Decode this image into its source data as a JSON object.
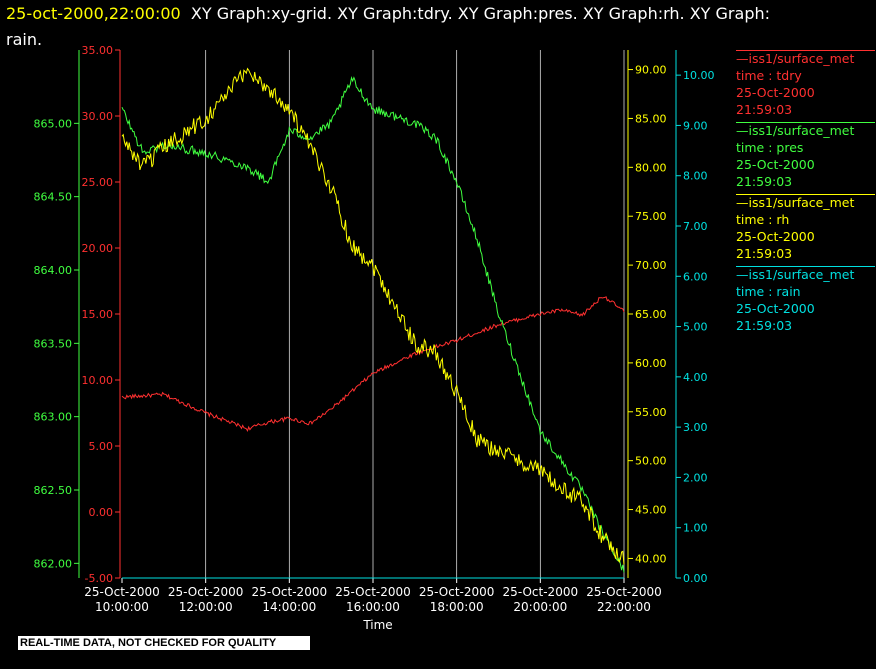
{
  "title": {
    "timestamp": "25-oct-2000,22:00:00",
    "text1": "XY Graph:xy-grid.  XY Graph:tdry.  XY Graph:pres.  XY Graph:rh.  XY Graph:",
    "text2": "rain."
  },
  "quality_note": "REAL-TIME DATA, NOT CHECKED FOR QUALITY",
  "colors": {
    "tdry": "#ff3030",
    "pres": "#40ff40",
    "rh": "#ffff00",
    "rain": "#00e0e0",
    "grid": "#ffffff",
    "text": "#ffffff"
  },
  "legend": [
    {
      "key": "tdry",
      "source": "iss1/surface_met",
      "field": "time : tdry",
      "date": "25-Oct-2000",
      "time": "21:59:03"
    },
    {
      "key": "pres",
      "source": "iss1/surface_met",
      "field": "time : pres",
      "date": "25-Oct-2000",
      "time": "21:59:03"
    },
    {
      "key": "rh",
      "source": "iss1/surface_met",
      "field": "time : rh",
      "date": "25-Oct-2000",
      "time": "21:59:03"
    },
    {
      "key": "rain",
      "source": "iss1/surface_met",
      "field": "time : rain",
      "date": "25-Oct-2000",
      "time": "21:59:03"
    }
  ],
  "chart_data": {
    "type": "line",
    "xlabel": "Time",
    "x_range": [
      "2000-10-25 10:00",
      "2000-10-25 22:00"
    ],
    "x_ticks": [
      {
        "date": "25-Oct-2000",
        "time": "10:00:00"
      },
      {
        "date": "25-Oct-2000",
        "time": "12:00:00"
      },
      {
        "date": "25-Oct-2000",
        "time": "14:00:00"
      },
      {
        "date": "25-Oct-2000",
        "time": "16:00:00"
      },
      {
        "date": "25-Oct-2000",
        "time": "18:00:00"
      },
      {
        "date": "25-Oct-2000",
        "time": "20:00:00"
      },
      {
        "date": "25-Oct-2000",
        "time": "22:00:00"
      }
    ],
    "grid": "vertical",
    "axes": {
      "pres": {
        "range": [
          861.9,
          865.5
        ],
        "ticks": [
          "862.00",
          "862.50",
          "863.00",
          "863.50",
          "864.00",
          "864.50",
          "865.00"
        ]
      },
      "tdry": {
        "range": [
          -5,
          35
        ],
        "ticks": [
          "-5.00",
          "0.00",
          "5.00",
          "10.00",
          "15.00",
          "20.00",
          "25.00",
          "30.00",
          "35.00"
        ]
      },
      "rh": {
        "range": [
          38,
          92
        ],
        "ticks": [
          "40.00",
          "45.00",
          "50.00",
          "55.00",
          "60.00",
          "65.00",
          "70.00",
          "75.00",
          "80.00",
          "85.00",
          "90.00"
        ]
      },
      "rain": {
        "range": [
          0,
          10.5
        ],
        "ticks": [
          "0.00",
          "1.00",
          "2.00",
          "3.00",
          "4.00",
          "5.00",
          "6.00",
          "7.00",
          "8.00",
          "9.00",
          "10.00"
        ]
      }
    },
    "series": [
      {
        "key": "tdry",
        "axis": "tdry",
        "x": [
          "2000-10-25 10:00",
          "2000-10-25 11:00",
          "2000-10-25 12:00",
          "2000-10-25 13:00",
          "2000-10-25 13:30",
          "2000-10-25 14:00",
          "2000-10-25 14:30",
          "2000-10-25 15:00",
          "2000-10-25 16:00",
          "2000-10-25 17:00",
          "2000-10-25 18:00",
          "2000-10-25 19:00",
          "2000-10-25 20:00",
          "2000-10-25 20:30",
          "2000-10-25 21:00",
          "2000-10-25 21:30",
          "2000-10-25 22:00"
        ],
        "values": [
          8.7,
          8.9,
          7.5,
          6.3,
          6.8,
          7.1,
          6.7,
          7.8,
          10.5,
          12.0,
          13.0,
          14.2,
          15.0,
          15.3,
          14.9,
          16.4,
          15.2
        ]
      },
      {
        "key": "pres",
        "axis": "pres",
        "x": [
          "2000-10-25 10:00",
          "2000-10-25 10:30",
          "2000-10-25 11:00",
          "2000-10-25 12:00",
          "2000-10-25 13:00",
          "2000-10-25 13:30",
          "2000-10-25 14:00",
          "2000-10-25 14:30",
          "2000-10-25 15:00",
          "2000-10-25 15:30",
          "2000-10-25 16:00",
          "2000-10-25 17:00",
          "2000-10-25 17:30",
          "2000-10-25 18:00",
          "2000-10-25 18:30",
          "2000-10-25 19:00",
          "2000-10-25 19:30",
          "2000-10-25 20:00",
          "2000-10-25 20:30",
          "2000-10-25 21:00",
          "2000-10-25 21:30",
          "2000-10-25 22:00"
        ],
        "values": [
          865.1,
          864.8,
          864.85,
          864.8,
          864.7,
          864.6,
          864.95,
          864.9,
          865.0,
          865.3,
          865.1,
          865.0,
          864.9,
          864.6,
          864.2,
          863.7,
          863.3,
          862.9,
          862.7,
          862.5,
          862.2,
          861.95
        ]
      },
      {
        "key": "rh",
        "axis": "rh",
        "x": [
          "2000-10-25 10:00",
          "2000-10-25 10:30",
          "2000-10-25 11:00",
          "2000-10-25 12:00",
          "2000-10-25 13:00",
          "2000-10-25 14:00",
          "2000-10-25 14:30",
          "2000-10-25 15:00",
          "2000-10-25 15:30",
          "2000-10-25 16:00",
          "2000-10-25 16:30",
          "2000-10-25 17:00",
          "2000-10-25 17:30",
          "2000-10-25 18:00",
          "2000-10-25 18:30",
          "2000-10-25 19:00",
          "2000-10-25 19:30",
          "2000-10-25 20:00",
          "2000-10-25 20:30",
          "2000-10-25 21:00",
          "2000-10-25 21:30",
          "2000-10-25 22:00"
        ],
        "values": [
          83,
          80,
          82,
          85,
          90,
          86,
          82,
          78,
          72,
          70,
          66,
          62,
          61,
          57,
          52,
          51,
          50,
          49,
          47,
          46,
          42,
          40
        ]
      },
      {
        "key": "rain",
        "axis": "rain",
        "x": [
          "2000-10-25 10:00",
          "2000-10-25 22:00"
        ],
        "values": [
          0.0,
          0.0
        ]
      }
    ]
  }
}
